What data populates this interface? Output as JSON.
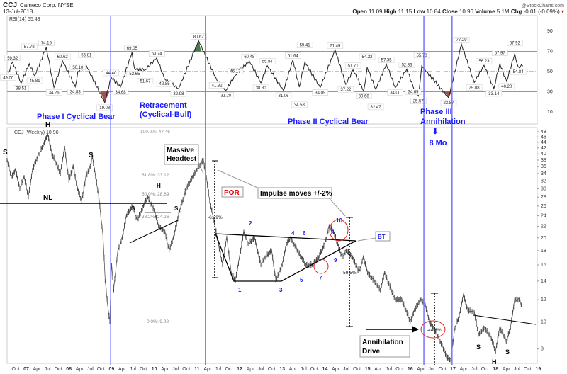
{
  "header": {
    "symbol": "CCJ",
    "company": "Cameco Corp. NYSE",
    "date": "13-Jul-2018",
    "brand": "@StockCharts.com",
    "open_label": "Open",
    "open": "11.09",
    "high_label": "High",
    "high": "11.15",
    "low_label": "Low",
    "low": "10.84",
    "close_label": "Close",
    "close": "10.96",
    "volume_label": "Volume",
    "volume": "5.1M",
    "chg_label": "Chg",
    "chg": "-0.01 (-0.09%)"
  },
  "colors": {
    "phase_line": "#7b7bff",
    "annotation_blue": "#1a1aff",
    "oversold_fill": "#a0524a",
    "overbought_fill": "#4a7a4a",
    "circle": "#e02020"
  },
  "chart_data": [
    {
      "type": "line",
      "title": "RSI(14) 55.43",
      "ylim": [
        0,
        100
      ],
      "y_ticks": [
        10,
        30,
        50,
        70,
        90
      ],
      "ref_lines": [
        30,
        50,
        70
      ],
      "points": [
        [
          2006.58,
          49.0
        ],
        [
          2006.68,
          59.32
        ],
        [
          2006.88,
          38.51
        ],
        [
          2007.07,
          57.78
        ],
        [
          2007.2,
          45.81
        ],
        [
          2007.47,
          74.15
        ],
        [
          2007.65,
          34.26
        ],
        [
          2007.85,
          60.62
        ],
        [
          2008.15,
          34.83
        ],
        [
          2008.21,
          50.1
        ],
        [
          2008.41,
          55.81
        ],
        [
          2008.84,
          19.08
        ],
        [
          2008.99,
          44.4
        ],
        [
          2009.21,
          34.68
        ],
        [
          2009.48,
          69.05
        ],
        [
          2009.54,
          52.65
        ],
        [
          2009.79,
          51.67
        ],
        [
          2010.06,
          63.74
        ],
        [
          2010.24,
          42.85
        ],
        [
          2010.57,
          32.98
        ],
        [
          2011.04,
          80.62
        ],
        [
          2011.47,
          41.32
        ],
        [
          2011.68,
          31.28
        ],
        [
          2011.9,
          46.13
        ],
        [
          2012.23,
          60.48
        ],
        [
          2012.5,
          38.8
        ],
        [
          2012.65,
          55.84
        ],
        [
          2013.03,
          31.06
        ],
        [
          2013.25,
          61.64
        ],
        [
          2013.4,
          34.58
        ],
        [
          2013.53,
          59.41
        ],
        [
          2013.89,
          34.09
        ],
        [
          2014.24,
          71.49
        ],
        [
          2014.49,
          37.22
        ],
        [
          2014.66,
          51.71
        ],
        [
          2014.91,
          30.68
        ],
        [
          2014.99,
          54.22
        ],
        [
          2015.19,
          32.47
        ],
        [
          2015.44,
          57.35
        ],
        [
          2015.65,
          34.0
        ],
        [
          2015.92,
          52.36
        ],
        [
          2016.07,
          34.69
        ],
        [
          2016.19,
          25.57
        ],
        [
          2016.27,
          55.7
        ],
        [
          2016.9,
          23.87
        ],
        [
          2017.2,
          77.29
        ],
        [
          2017.5,
          39.08
        ],
        [
          2017.73,
          56.23
        ],
        [
          2017.96,
          33.14
        ],
        [
          2018.1,
          57.97
        ],
        [
          2018.26,
          40.2
        ],
        [
          2018.45,
          67.92
        ],
        [
          2018.53,
          54.84
        ],
        [
          2018.64,
          55.43
        ]
      ],
      "labels": [
        "49.00",
        "59.32",
        "38.51",
        "57.78",
        "45.81",
        "74.15",
        "34.26",
        "60.62",
        "34.83",
        "50.10",
        "55.81",
        "19.08",
        "44.40",
        "34.68",
        "69.05",
        "52.65",
        "51.67",
        "63.74",
        "42.85",
        "32.98",
        "80.62",
        "41.32",
        "31.28",
        "46.13",
        "60.48",
        "38.80",
        "55.84",
        "31.06",
        "61.64",
        "34.58",
        "59.41",
        "34.09",
        "71.49",
        "37.22",
        "51.71",
        "30.68",
        "54.22",
        "32.47",
        "57.35",
        "34.00",
        "52.36",
        "34.69",
        "25.57",
        "55.70",
        "23.87",
        "77.29",
        "39.08",
        "56.23",
        "33.14",
        "57.97",
        "40.20",
        "67.92",
        "54.84",
        ""
      ]
    },
    {
      "type": "line",
      "title": "CCJ (Weekly) 10.96",
      "scale": "log",
      "ylim": [
        7,
        48
      ],
      "y_ticks": [
        8,
        10,
        12,
        14,
        16,
        18,
        20,
        22,
        24,
        26,
        28,
        30,
        32,
        34,
        36,
        38,
        40,
        42,
        44,
        46,
        48
      ],
      "x_ticks": [
        "Oct",
        "07",
        "Apr",
        "Jul",
        "Oct",
        "08",
        "Apr",
        "Jul",
        "Oct",
        "09",
        "Apr",
        "Jul",
        "Oct",
        "10",
        "Apr",
        "Jul",
        "Oct",
        "11",
        "Apr",
        "Jul",
        "Oct",
        "12",
        "Apr",
        "Jul",
        "Oct",
        "13",
        "Apr",
        "Jul",
        "Oct",
        "14",
        "Apr",
        "Jul",
        "Oct",
        "15",
        "Apr",
        "Jul",
        "Oct",
        "16",
        "Apr",
        "Jul",
        "Oct",
        "17",
        "Apr",
        "Jul",
        "Oct",
        "18",
        "Apr",
        "Jul",
        "Oct",
        "19"
      ],
      "phase_lines": [
        2008.98,
        2011.2,
        2016.32,
        2016.98
      ],
      "points": [
        [
          2006.55,
          38
        ],
        [
          2006.65,
          33
        ],
        [
          2006.75,
          35
        ],
        [
          2006.85,
          30
        ],
        [
          2006.95,
          33
        ],
        [
          2007.05,
          28
        ],
        [
          2007.15,
          35
        ],
        [
          2007.3,
          40
        ],
        [
          2007.4,
          43
        ],
        [
          2007.5,
          47
        ],
        [
          2007.55,
          44
        ],
        [
          2007.6,
          40
        ],
        [
          2007.7,
          37
        ],
        [
          2007.8,
          34
        ],
        [
          2007.9,
          42
        ],
        [
          2008.0,
          32
        ],
        [
          2008.1,
          36
        ],
        [
          2008.2,
          30
        ],
        [
          2008.3,
          27
        ],
        [
          2008.4,
          33
        ],
        [
          2008.5,
          36
        ],
        [
          2008.55,
          39
        ],
        [
          2008.6,
          35
        ],
        [
          2008.7,
          28
        ],
        [
          2008.8,
          20
        ],
        [
          2008.85,
          14
        ],
        [
          2008.92,
          11
        ],
        [
          2008.96,
          10
        ],
        [
          2009.0,
          16
        ],
        [
          2009.05,
          13
        ],
        [
          2009.15,
          18
        ],
        [
          2009.25,
          20
        ],
        [
          2009.35,
          24
        ],
        [
          2009.5,
          26
        ],
        [
          2009.6,
          23
        ],
        [
          2009.75,
          26
        ],
        [
          2009.85,
          28
        ],
        [
          2010.0,
          25
        ],
        [
          2010.1,
          22
        ],
        [
          2010.25,
          21
        ],
        [
          2010.35,
          18
        ],
        [
          2010.45,
          20
        ],
        [
          2010.6,
          25
        ],
        [
          2010.75,
          30
        ],
        [
          2010.9,
          33
        ],
        [
          2011.0,
          35
        ],
        [
          2011.15,
          38
        ],
        [
          2011.22,
          33
        ],
        [
          2011.3,
          27
        ],
        [
          2011.4,
          23
        ],
        [
          2011.5,
          19
        ],
        [
          2011.6,
          16
        ],
        [
          2011.7,
          20
        ],
        [
          2011.8,
          15
        ],
        [
          2011.9,
          14
        ],
        [
          2012.0,
          17
        ],
        [
          2012.1,
          21
        ],
        [
          2012.2,
          19
        ],
        [
          2012.35,
          20
        ],
        [
          2012.5,
          16
        ],
        [
          2012.6,
          17
        ],
        [
          2012.75,
          18
        ],
        [
          2012.85,
          14
        ],
        [
          2013.0,
          16
        ],
        [
          2013.1,
          19
        ],
        [
          2013.2,
          20
        ],
        [
          2013.35,
          18
        ],
        [
          2013.45,
          17
        ],
        [
          2013.55,
          16
        ],
        [
          2013.7,
          16
        ],
        [
          2013.85,
          17
        ],
        [
          2014.0,
          19
        ],
        [
          2014.1,
          22
        ],
        [
          2014.2,
          21
        ],
        [
          2014.3,
          19
        ],
        [
          2014.4,
          17
        ],
        [
          2014.5,
          18
        ],
        [
          2014.65,
          17
        ],
        [
          2014.8,
          15
        ],
        [
          2014.9,
          17
        ],
        [
          2015.0,
          15
        ],
        [
          2015.15,
          14
        ],
        [
          2015.3,
          13
        ],
        [
          2015.4,
          15
        ],
        [
          2015.55,
          13
        ],
        [
          2015.65,
          12
        ],
        [
          2015.8,
          12
        ],
        [
          2015.9,
          11
        ],
        [
          2016.0,
          10
        ],
        [
          2016.1,
          11
        ],
        [
          2016.25,
          12
        ],
        [
          2016.35,
          11.5
        ],
        [
          2016.45,
          10
        ],
        [
          2016.55,
          9.5
        ],
        [
          2016.7,
          8.5
        ],
        [
          2016.85,
          7.5
        ],
        [
          2016.95,
          7.3
        ],
        [
          2017.05,
          9.5
        ],
        [
          2017.15,
          10.5
        ],
        [
          2017.25,
          12.5
        ],
        [
          2017.35,
          11
        ],
        [
          2017.5,
          10.8
        ],
        [
          2017.6,
          9
        ],
        [
          2017.75,
          9.5
        ],
        [
          2017.9,
          8.7
        ],
        [
          2018.0,
          7.8
        ],
        [
          2018.1,
          9.5
        ],
        [
          2018.25,
          8.5
        ],
        [
          2018.35,
          9.5
        ],
        [
          2018.45,
          12
        ],
        [
          2018.55,
          12
        ],
        [
          2018.6,
          11.5
        ],
        [
          2018.64,
          11
        ]
      ]
    }
  ],
  "annotations": {
    "phase1": "Phase I Cyclical Bear",
    "retrace1": "Retracement",
    "retrace2": "(Cyclical-Bull)",
    "phase2": "Phase II Cyclical Bear",
    "phase3a": "Phase III",
    "phase3b": "Annihilation",
    "eight_mo": "8 Mo",
    "arrow": "⬇",
    "massive1": "Massive",
    "massive2": "Headtest",
    "por": "POR",
    "impulse": "Impulse moves +/-2%",
    "bt": "BT",
    "annih1": "Annihilation",
    "annih2": "Drive",
    "nl": "NL",
    "s": "S",
    "h": "H",
    "fib100": "100.0%: 47.46",
    "fib618": "61.8%: 33.12",
    "fib50": "50.0%: 28.69",
    "fib382": "38.2%: 24.26",
    "fib0": "0.0%: 9.92",
    "pct1": "-61.9%",
    "pct2": "-59.5%",
    "pct3": "-44.8%",
    "n1": "1",
    "n2": "2",
    "n3": "3",
    "n4": "4",
    "n5": "5",
    "n6": "6",
    "n7": "7",
    "n8": "8",
    "n9": "9",
    "n10": "10"
  }
}
